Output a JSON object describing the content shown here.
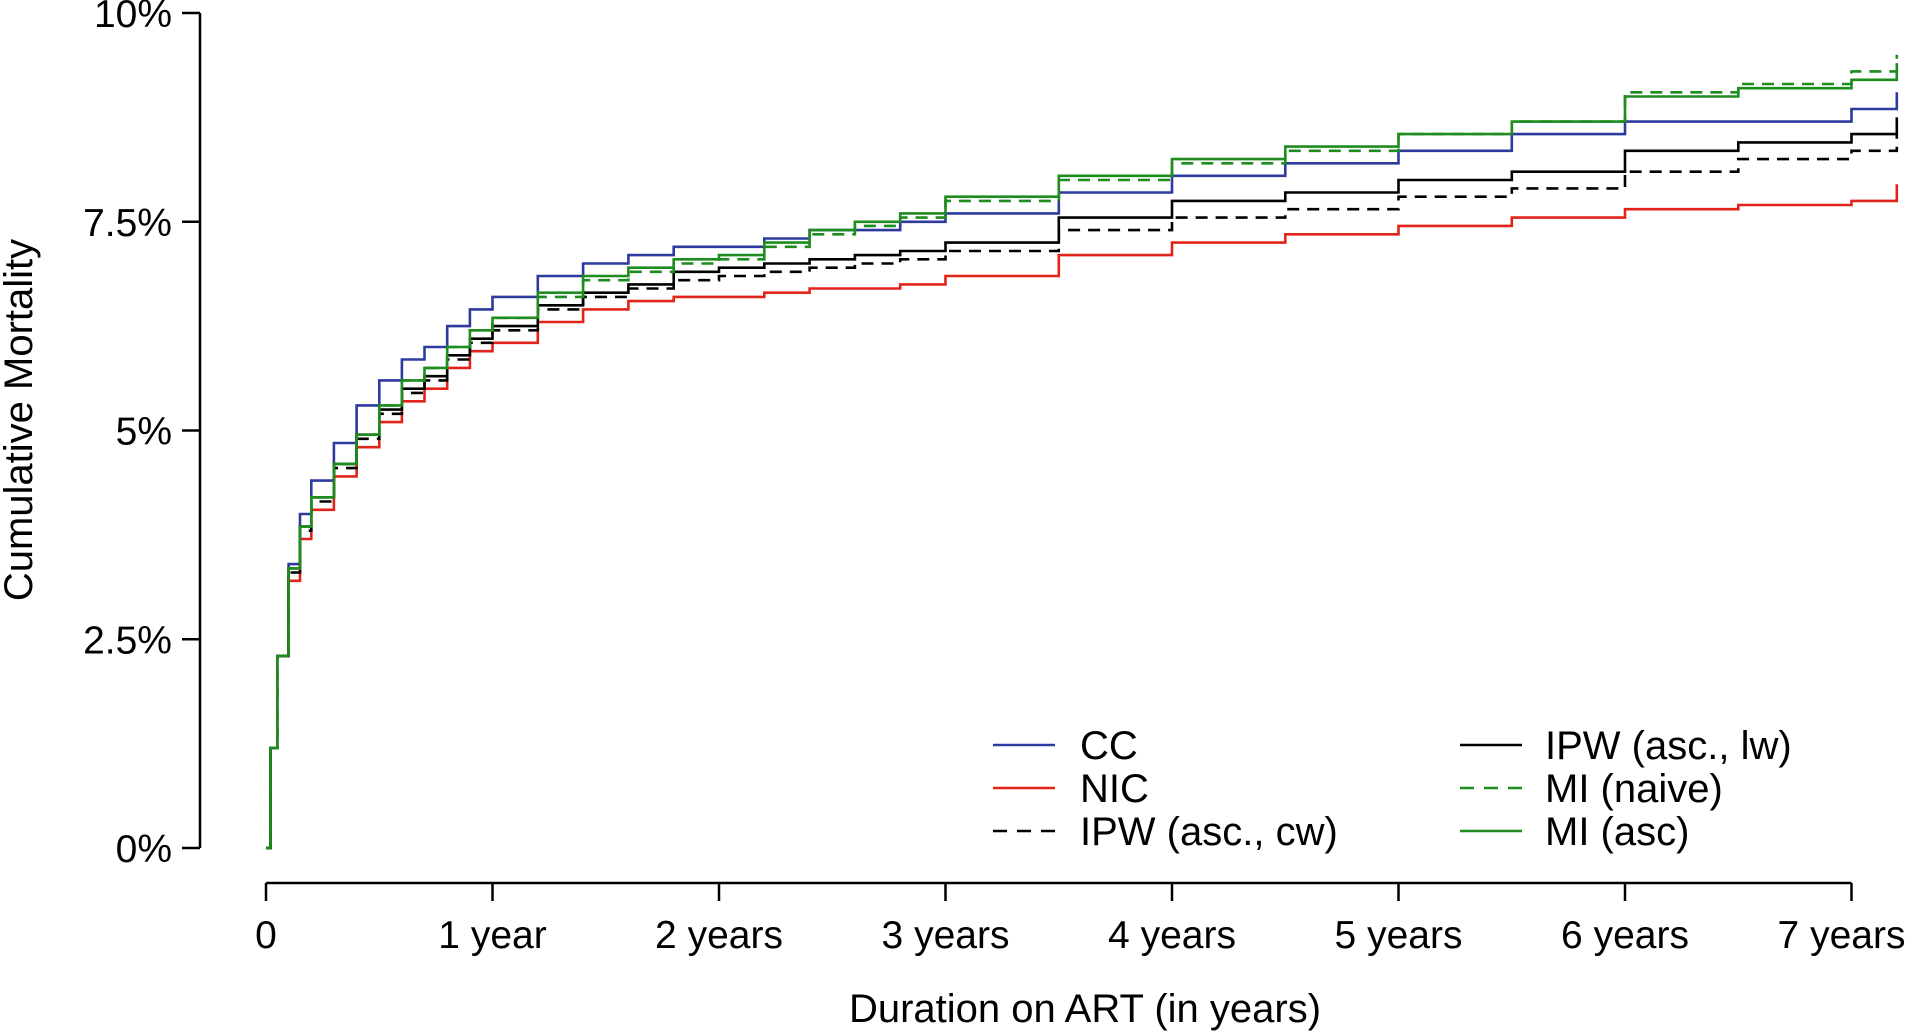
{
  "chart_data": {
    "type": "line",
    "title": "",
    "xlabel": "Duration on ART (in years)",
    "ylabel": "Cumulative Mortality",
    "xlim": [
      0,
      7.2
    ],
    "ylim": [
      0,
      10
    ],
    "x_ticks": [
      {
        "value": 0,
        "label": "0"
      },
      {
        "value": 1,
        "label": "1 year"
      },
      {
        "value": 2,
        "label": "2 years"
      },
      {
        "value": 3,
        "label": "3 years"
      },
      {
        "value": 4,
        "label": "4 years"
      },
      {
        "value": 5,
        "label": "5 years"
      },
      {
        "value": 6,
        "label": "6 years"
      },
      {
        "value": 7,
        "label": "7 years"
      }
    ],
    "y_ticks": [
      {
        "value": 0,
        "label": "0%"
      },
      {
        "value": 2.5,
        "label": "2.5%"
      },
      {
        "value": 5,
        "label": "5%"
      },
      {
        "value": 7.5,
        "label": "7.5%"
      },
      {
        "value": 10,
        "label": "10%"
      }
    ],
    "legend_position": "bottom-right",
    "series": [
      {
        "name": "CC",
        "color": "#2e3a9e",
        "dash": "solid",
        "x": [
          0,
          0.02,
          0.05,
          0.1,
          0.15,
          0.2,
          0.3,
          0.4,
          0.5,
          0.6,
          0.7,
          0.8,
          0.9,
          1.0,
          1.2,
          1.4,
          1.6,
          1.8,
          2.0,
          2.2,
          2.4,
          2.6,
          2.8,
          3.0,
          3.5,
          4.0,
          4.5,
          5.0,
          5.5,
          6.0,
          6.5,
          7.0,
          7.2
        ],
        "values": [
          0,
          1.2,
          2.3,
          3.4,
          4.0,
          4.4,
          4.85,
          5.3,
          5.6,
          5.85,
          6.0,
          6.25,
          6.45,
          6.6,
          6.85,
          7.0,
          7.1,
          7.2,
          7.2,
          7.3,
          7.4,
          7.4,
          7.5,
          7.6,
          7.85,
          8.05,
          8.2,
          8.35,
          8.55,
          8.7,
          8.7,
          8.85,
          9.05
        ]
      },
      {
        "name": "NIC",
        "color": "#e2231a",
        "dash": "solid",
        "x": [
          0,
          0.02,
          0.05,
          0.1,
          0.15,
          0.2,
          0.3,
          0.4,
          0.5,
          0.6,
          0.7,
          0.8,
          0.9,
          1.0,
          1.2,
          1.4,
          1.6,
          1.8,
          2.0,
          2.2,
          2.4,
          2.6,
          2.8,
          3.0,
          3.5,
          4.0,
          4.5,
          5.0,
          5.5,
          6.0,
          6.5,
          7.0,
          7.2
        ],
        "values": [
          0,
          1.2,
          2.3,
          3.2,
          3.7,
          4.05,
          4.45,
          4.8,
          5.1,
          5.35,
          5.5,
          5.75,
          5.95,
          6.05,
          6.3,
          6.45,
          6.55,
          6.6,
          6.6,
          6.65,
          6.7,
          6.7,
          6.75,
          6.85,
          7.1,
          7.25,
          7.35,
          7.45,
          7.55,
          7.65,
          7.7,
          7.75,
          7.95
        ]
      },
      {
        "name": "IPW (asc., cw)",
        "color": "#000000",
        "dash": "dashed",
        "x": [
          0,
          0.02,
          0.05,
          0.1,
          0.15,
          0.2,
          0.3,
          0.4,
          0.5,
          0.6,
          0.7,
          0.8,
          0.9,
          1.0,
          1.2,
          1.4,
          1.6,
          1.8,
          2.0,
          2.2,
          2.4,
          2.6,
          2.8,
          3.0,
          3.5,
          4.0,
          4.5,
          5.0,
          5.5,
          6.0,
          6.5,
          7.0,
          7.2
        ],
        "values": [
          0,
          1.2,
          2.3,
          3.3,
          3.8,
          4.15,
          4.55,
          4.9,
          5.2,
          5.45,
          5.6,
          5.85,
          6.05,
          6.2,
          6.45,
          6.6,
          6.7,
          6.8,
          6.85,
          6.9,
          6.95,
          7.0,
          7.05,
          7.15,
          7.4,
          7.55,
          7.65,
          7.8,
          7.9,
          8.1,
          8.25,
          8.35,
          8.55
        ]
      },
      {
        "name": "IPW (asc., lw)",
        "color": "#000000",
        "dash": "solid",
        "x": [
          0,
          0.02,
          0.05,
          0.1,
          0.15,
          0.2,
          0.3,
          0.4,
          0.5,
          0.6,
          0.7,
          0.8,
          0.9,
          1.0,
          1.2,
          1.4,
          1.6,
          1.8,
          2.0,
          2.2,
          2.4,
          2.6,
          2.8,
          3.0,
          3.5,
          4.0,
          4.5,
          5.0,
          5.5,
          6.0,
          6.5,
          7.0,
          7.2
        ],
        "values": [
          0,
          1.2,
          2.3,
          3.35,
          3.85,
          4.2,
          4.6,
          4.95,
          5.25,
          5.5,
          5.65,
          5.9,
          6.1,
          6.25,
          6.5,
          6.65,
          6.75,
          6.9,
          6.95,
          7.0,
          7.05,
          7.1,
          7.15,
          7.25,
          7.55,
          7.75,
          7.85,
          8.0,
          8.1,
          8.35,
          8.45,
          8.55,
          8.75
        ]
      },
      {
        "name": "MI (naive)",
        "color": "#1e8c1e",
        "dash": "dashed",
        "x": [
          0,
          0.02,
          0.05,
          0.1,
          0.15,
          0.2,
          0.3,
          0.4,
          0.5,
          0.6,
          0.7,
          0.8,
          0.9,
          1.0,
          1.2,
          1.4,
          1.6,
          1.8,
          2.0,
          2.2,
          2.4,
          2.6,
          2.8,
          3.0,
          3.5,
          4.0,
          4.5,
          5.0,
          5.5,
          6.0,
          6.5,
          7.0,
          7.2
        ],
        "values": [
          0,
          1.2,
          2.3,
          3.35,
          3.85,
          4.2,
          4.6,
          4.95,
          5.3,
          5.6,
          5.75,
          6.0,
          6.2,
          6.35,
          6.6,
          6.8,
          6.9,
          7.0,
          7.05,
          7.2,
          7.35,
          7.45,
          7.55,
          7.75,
          8.0,
          8.2,
          8.35,
          8.55,
          8.7,
          9.05,
          9.15,
          9.3,
          9.5
        ]
      },
      {
        "name": "MI (asc)",
        "color": "#1e8c1e",
        "dash": "solid",
        "x": [
          0,
          0.02,
          0.05,
          0.1,
          0.15,
          0.2,
          0.3,
          0.4,
          0.5,
          0.6,
          0.7,
          0.8,
          0.9,
          1.0,
          1.2,
          1.4,
          1.6,
          1.8,
          2.0,
          2.2,
          2.4,
          2.6,
          2.8,
          3.0,
          3.5,
          4.0,
          4.5,
          5.0,
          5.5,
          6.0,
          6.5,
          7.0,
          7.2
        ],
        "values": [
          0,
          1.2,
          2.3,
          3.35,
          3.85,
          4.2,
          4.6,
          4.95,
          5.3,
          5.6,
          5.75,
          6.0,
          6.2,
          6.35,
          6.65,
          6.85,
          6.95,
          7.05,
          7.1,
          7.25,
          7.4,
          7.5,
          7.6,
          7.8,
          8.05,
          8.25,
          8.4,
          8.55,
          8.7,
          9.0,
          9.1,
          9.2,
          9.4
        ]
      }
    ],
    "legend": {
      "left_column": [
        "CC",
        "NIC",
        "IPW (asc., cw)"
      ],
      "right_column": [
        "IPW (asc., lw)",
        "MI (naive)",
        "MI (asc)"
      ]
    }
  }
}
